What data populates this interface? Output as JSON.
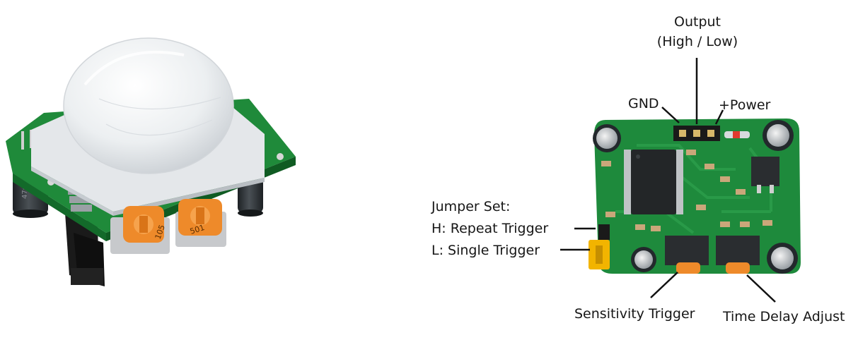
{
  "labels": {
    "output_line1": "Output",
    "output_line2": "(High / Low)",
    "gnd": "GND",
    "power": "+Power",
    "jumper_title": "Jumper Set:",
    "jumper_h": "H: Repeat Trigger",
    "jumper_l": "L: Single Trigger",
    "sensitivity": "Sensitivity Trigger",
    "time_delay": "Time Delay Adjust"
  },
  "parts": {
    "pot_code_left": "105",
    "pot_code_right": "501"
  },
  "colors": {
    "pcb_green": "#1e8a3c",
    "pcb_dark": "#136a2a",
    "lens_white": "#eef0f2",
    "pot_orange": "#ee8a2a",
    "jumper_yellow": "#f2b400",
    "header_black": "#1a1a1a",
    "capacitor": "#2b2f33"
  }
}
